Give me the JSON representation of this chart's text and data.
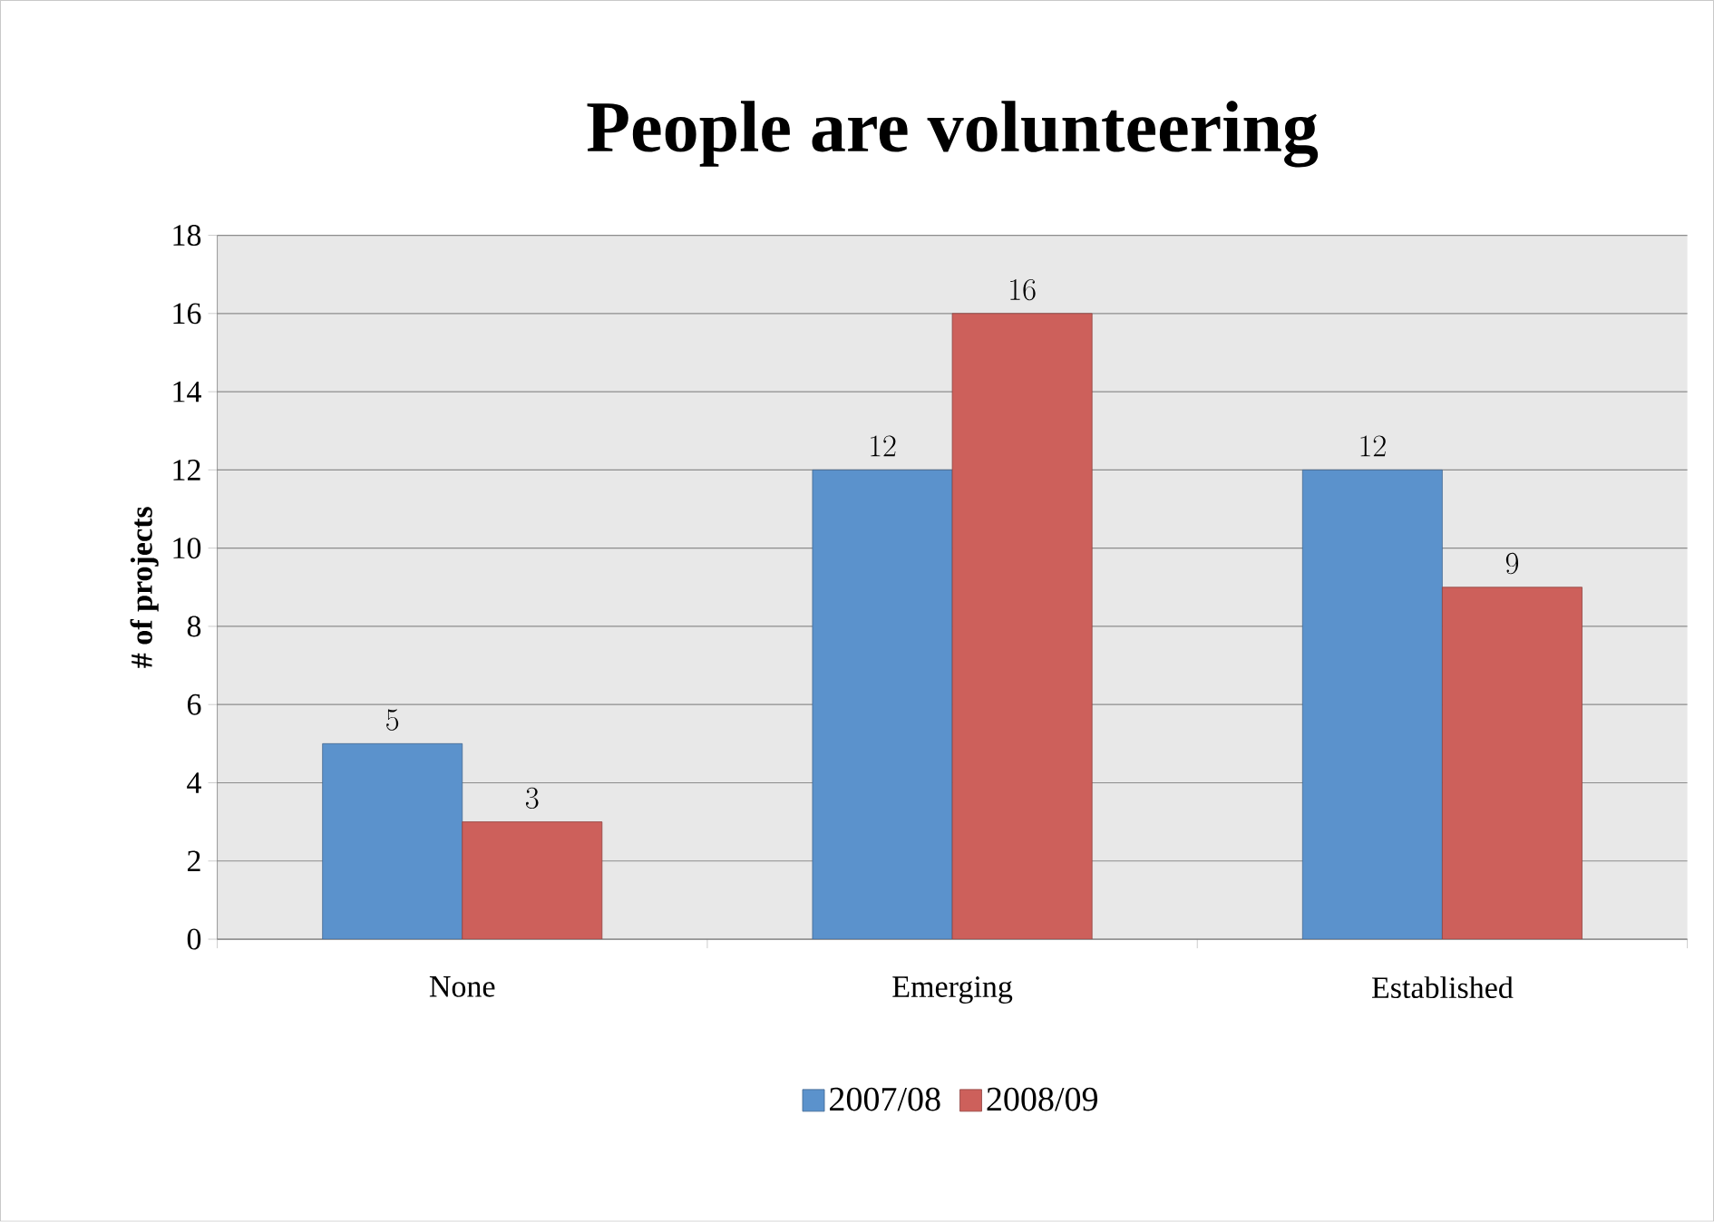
{
  "chart_data": {
    "type": "bar",
    "title": "People are volunteering",
    "ylabel": "# of projects",
    "categories": [
      "None",
      "Emerging",
      "Established"
    ],
    "series": [
      {
        "name": "2007/08",
        "color": "#5b92cc",
        "values": [
          5,
          12,
          12
        ]
      },
      {
        "name": "2008/09",
        "color": "#cd605b",
        "values": [
          3,
          16,
          9
        ]
      }
    ],
    "ylim": [
      0,
      18
    ],
    "yticks": [
      0,
      2,
      4,
      6,
      8,
      10,
      12,
      14,
      16,
      18
    ],
    "grid": "y",
    "legend": "bottom",
    "data_labels": true
  }
}
